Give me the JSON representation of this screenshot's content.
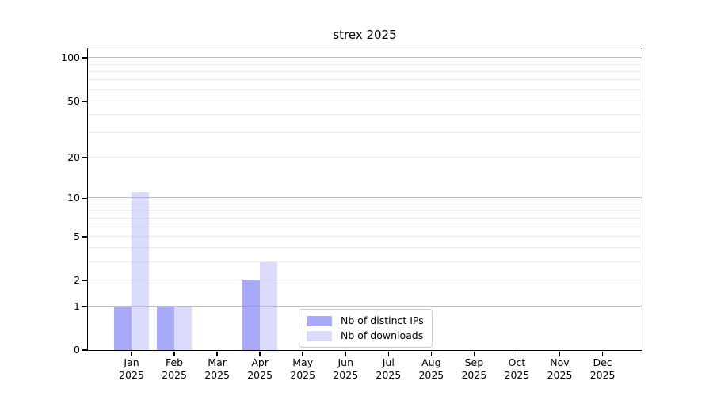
{
  "chart_data": {
    "type": "bar",
    "title": "strex 2025",
    "categories": [
      "Jan",
      "Feb",
      "Mar",
      "Apr",
      "May",
      "Jun",
      "Jul",
      "Aug",
      "Sep",
      "Oct",
      "Nov",
      "Dec"
    ],
    "year": "2025",
    "series": [
      {
        "key": "distinct-ips",
        "name": "Nb of distinct IPs",
        "color": "rgba(136,136,246,0.72)",
        "color_solid": "#a9a9f8",
        "values": [
          1,
          1,
          0,
          2,
          0,
          0,
          0,
          0,
          0,
          0,
          0,
          0
        ]
      },
      {
        "key": "downloads",
        "name": "Nb of downloads",
        "color": "rgba(170,170,247,0.42)",
        "color_solid": "#dcdcfb",
        "values": [
          11,
          1,
          0,
          3,
          0,
          0,
          0,
          0,
          0,
          0,
          0,
          0
        ]
      }
    ],
    "yscale": "log10(1+value)",
    "ylim": [
      0,
      115
    ],
    "y_ticks": [
      0,
      1,
      2,
      5,
      10,
      20,
      50,
      100
    ],
    "grid_major_values": [
      1,
      10,
      100
    ],
    "grid_minor_values": [
      2,
      3,
      4,
      5,
      6,
      7,
      8,
      9,
      20,
      30,
      40,
      50,
      60,
      70,
      80,
      90
    ],
    "legend_position": "inside lower-center"
  },
  "colors": {
    "grid_major": "#bdbdbd",
    "grid_minor": "#ebebeb",
    "spine": "#000000",
    "legend_border": "#cccccc",
    "background": "#ffffff",
    "text": "#000000"
  }
}
